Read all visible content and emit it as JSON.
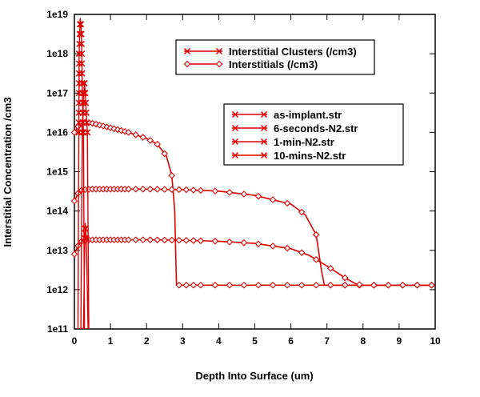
{
  "chart_data": {
    "type": "line",
    "title": "",
    "xlabel": "Depth Into Surface (um)",
    "ylabel": "Interstitial Concentration /cm3",
    "xlim": [
      0,
      10
    ],
    "ylim": [
      100000000000.0,
      1e+19
    ],
    "y_scale": "log",
    "grid": false,
    "x_ticks": [
      0,
      1,
      2,
      3,
      4,
      5,
      6,
      7,
      8,
      9,
      10
    ],
    "y_ticks": [
      100000000000.0,
      1000000000000.0,
      10000000000000.0,
      100000000000000.0,
      1000000000000000.0,
      1e+16,
      1e+17,
      1e+18,
      1e+19
    ],
    "x_tick_labels": [
      "0",
      "1",
      "2",
      "3",
      "4",
      "5",
      "6",
      "7",
      "8",
      "9",
      "10"
    ],
    "y_tick_labels": [
      "1e11",
      "1e12",
      "1e13",
      "1e14",
      "1e15",
      "1e16",
      "1e17",
      "1e18",
      "1e19"
    ],
    "line_color": "#dd0000",
    "legend_types": {
      "entries": [
        {
          "label": "Interstitial Clusters (/cm3)",
          "marker": "x"
        },
        {
          "label": "Interstitials (/cm3)",
          "marker": "diamond"
        }
      ]
    },
    "legend_files": {
      "entries": [
        {
          "label": "as-implant.str",
          "marker": "x"
        },
        {
          "label": "6-seconds-N2.str",
          "marker": "x"
        },
        {
          "label": "1-min-N2.str",
          "marker": "x"
        },
        {
          "label": "10-mins-N2.str",
          "marker": "x"
        }
      ]
    },
    "interstitials": [
      {
        "x": [
          0.0,
          0.1,
          0.2,
          0.3,
          0.5,
          1.0,
          1.5,
          2.0,
          2.3,
          2.55,
          2.7,
          2.78,
          2.83,
          3.0,
          4.0,
          5.0,
          6.0,
          7.0,
          8.0,
          9.0,
          10.0
        ],
        "y": [
          1e+16,
          1.4e+16,
          1.7e+16,
          1.8e+16,
          1.7e+16,
          1.3e+16,
          1e+16,
          7000000000000000.0,
          5000000000000000.0,
          2500000000000000.0,
          800000000000000.0,
          100000000000000.0,
          1300000000000.0,
          1300000000000.0,
          1300000000000.0,
          1300000000000.0,
          1300000000000.0,
          1300000000000.0,
          1300000000000.0,
          1300000000000.0,
          1300000000000.0
        ]
      },
      {
        "x": [
          0.0,
          0.1,
          0.2,
          0.3,
          0.5,
          1.0,
          2.0,
          3.0,
          4.0,
          5.0,
          6.0,
          6.4,
          6.7,
          6.85,
          6.93,
          7.0,
          8.0,
          9.0,
          10.0
        ],
        "y": [
          180000000000000.0,
          280000000000000.0,
          340000000000000.0,
          350000000000000.0,
          360000000000000.0,
          360000000000000.0,
          360000000000000.0,
          350000000000000.0,
          320000000000000.0,
          250000000000000.0,
          150000000000000.0,
          80000000000000.0,
          25000000000000.0,
          3000000000000.0,
          1300000000000.0,
          1300000000000.0,
          1300000000000.0,
          1300000000000.0,
          1300000000000.0
        ]
      },
      {
        "x": [
          0.0,
          0.1,
          0.2,
          0.3,
          0.5,
          1.0,
          2.0,
          3.0,
          4.0,
          5.0,
          6.0,
          6.5,
          7.0,
          7.5,
          7.8,
          8.0,
          9.0,
          10.0
        ],
        "y": [
          8000000000000.0,
          13000000000000.0,
          17000000000000.0,
          18000000000000.0,
          18500000000000.0,
          18500000000000.0,
          18500000000000.0,
          18000000000000.0,
          17000000000000.0,
          15000000000000.0,
          11000000000000.0,
          7500000000000.0,
          4000000000000.0,
          2000000000000.0,
          1400000000000.0,
          1300000000000.0,
          1300000000000.0,
          1300000000000.0
        ]
      }
    ],
    "clusters": [
      {
        "x": [
          0.1,
          0.13,
          0.16,
          0.18,
          0.2,
          0.22,
          0.25,
          0.28
        ],
        "y": [
          100000000000.0,
          1e+18,
          8e+18,
          6e+18,
          2e+18,
          1e+17,
          1e+16,
          100000000000.0
        ]
      },
      {
        "x": [
          0.18,
          0.22,
          0.28,
          0.32,
          0.36,
          0.4
        ],
        "y": [
          100000000000.0,
          1.5e+16,
          2e+17,
          5e+16,
          1e+16,
          100000000000.0
        ]
      },
      {
        "x": [
          0.25,
          0.3,
          0.33,
          0.38
        ],
        "y": [
          100000000000.0,
          50000000000000.0,
          20000000000000.0,
          100000000000.0
        ]
      }
    ]
  }
}
